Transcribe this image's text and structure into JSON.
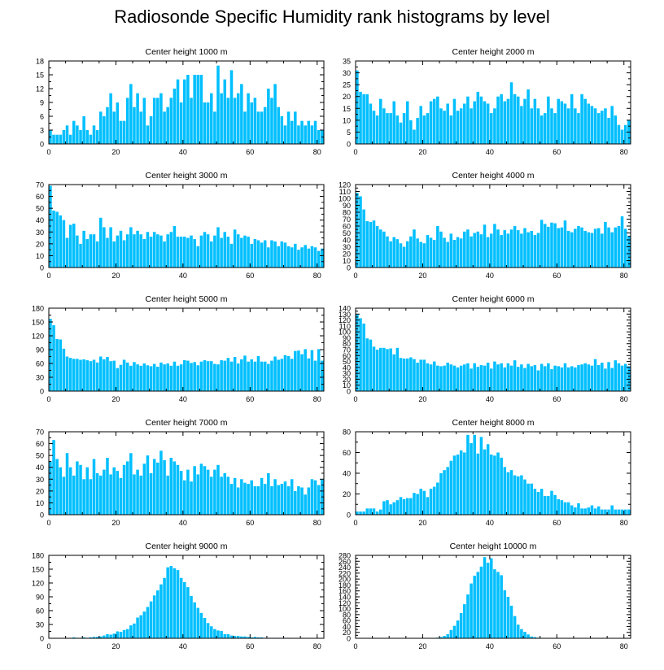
{
  "title": "Radiosonde Specific Humidity rank histograms by level",
  "colors": {
    "bar": "#00BFFF",
    "axis": "#000000",
    "background": "#FFFFFF"
  },
  "chart_data": [
    {
      "type": "bar",
      "title": "Center height 1000 m",
      "xlabel": "",
      "ylabel": "",
      "xlim": [
        0,
        82
      ],
      "ylim": [
        0,
        18
      ],
      "yticks": [
        0,
        3,
        6,
        9,
        12,
        15,
        18
      ],
      "ytick_labels": [
        "0",
        "3",
        "6",
        "9",
        "12",
        "15",
        "18"
      ],
      "xticks": [
        0,
        20,
        40,
        60,
        80
      ],
      "xtick_labels": [
        "0",
        "20",
        "40",
        "60",
        "80"
      ],
      "values": [
        3,
        2,
        2,
        2,
        3,
        4,
        2,
        5,
        4,
        3,
        6,
        3,
        2,
        4,
        3,
        7,
        6,
        8,
        11,
        7,
        9,
        5,
        5,
        10,
        13,
        8,
        11,
        7,
        10,
        4,
        6,
        10,
        10,
        11,
        7,
        8,
        10,
        12,
        14,
        9,
        14,
        15,
        10,
        15,
        15,
        15,
        9,
        9,
        11,
        7,
        17,
        11,
        14,
        10,
        16,
        10,
        11,
        13,
        7,
        11,
        9,
        10,
        7,
        7,
        8,
        12,
        10,
        13,
        8,
        6,
        4,
        7,
        5,
        7,
        4,
        5,
        4,
        5,
        4,
        5,
        3,
        3
      ]
    },
    {
      "type": "bar",
      "title": "Center height 2000 m",
      "xlabel": "",
      "ylabel": "",
      "xlim": [
        0,
        82
      ],
      "ylim": [
        0,
        35
      ],
      "yticks": [
        0,
        5,
        10,
        15,
        20,
        25,
        30,
        35
      ],
      "ytick_labels": [
        "0",
        "5",
        "10",
        "15",
        "20",
        "25",
        "30",
        "35"
      ],
      "xticks": [
        0,
        20,
        40,
        60,
        80
      ],
      "xtick_labels": [
        "0",
        "20",
        "40",
        "60",
        "80"
      ],
      "values": [
        31,
        22,
        21,
        21,
        17,
        14,
        12,
        19,
        15,
        13,
        13,
        18,
        12,
        9,
        13,
        18,
        10,
        6,
        11,
        16,
        12,
        13,
        18,
        19,
        20,
        15,
        14,
        17,
        12,
        19,
        14,
        15,
        17,
        20,
        15,
        18,
        22,
        20,
        18,
        17,
        13,
        15,
        20,
        21,
        18,
        19,
        26,
        21,
        20,
        16,
        19,
        23,
        15,
        19,
        15,
        12,
        13,
        20,
        15,
        13,
        19,
        18,
        17,
        15,
        21,
        15,
        13,
        21,
        19,
        17,
        16,
        15,
        13,
        14,
        15,
        11,
        16,
        12,
        8,
        6,
        8,
        10
      ]
    },
    {
      "type": "bar",
      "title": "Center height 3000 m",
      "xlabel": "",
      "ylabel": "",
      "xlim": [
        0,
        82
      ],
      "ylim": [
        0,
        70
      ],
      "yticks": [
        0,
        10,
        20,
        30,
        40,
        50,
        60,
        70
      ],
      "ytick_labels": [
        "0",
        "10",
        "20",
        "30",
        "40",
        "50",
        "60",
        "70"
      ],
      "xticks": [
        0,
        20,
        40,
        60,
        80
      ],
      "xtick_labels": [
        "0",
        "20",
        "40",
        "60",
        "80"
      ],
      "values": [
        69,
        48,
        47,
        44,
        40,
        25,
        36,
        37,
        27,
        20,
        31,
        24,
        28,
        28,
        22,
        42,
        34,
        25,
        34,
        22,
        27,
        31,
        23,
        28,
        34,
        28,
        31,
        28,
        24,
        30,
        26,
        30,
        28,
        27,
        22,
        28,
        30,
        35,
        26,
        26,
        26,
        25,
        27,
        24,
        18,
        27,
        30,
        28,
        22,
        27,
        34,
        25,
        30,
        26,
        20,
        32,
        28,
        25,
        27,
        26,
        20,
        24,
        23,
        21,
        23,
        17,
        23,
        22,
        18,
        22,
        21,
        18,
        17,
        20,
        15,
        17,
        19,
        16,
        18,
        17,
        14,
        16
      ]
    },
    {
      "type": "bar",
      "title": "Center height 4000 m",
      "xlabel": "",
      "ylabel": "",
      "xlim": [
        0,
        82
      ],
      "ylim": [
        0,
        120
      ],
      "yticks": [
        0,
        10,
        20,
        30,
        40,
        50,
        60,
        70,
        80,
        90,
        100,
        110,
        120
      ],
      "ytick_labels": [
        "0",
        "10",
        "20",
        "30",
        "40",
        "50",
        "60",
        "70",
        "80",
        "90",
        "100",
        "110",
        "120"
      ],
      "xticks": [
        0,
        20,
        40,
        60,
        80
      ],
      "xtick_labels": [
        "0",
        "20",
        "40",
        "60",
        "80"
      ],
      "values": [
        108,
        103,
        84,
        67,
        66,
        68,
        60,
        55,
        52,
        45,
        38,
        44,
        41,
        35,
        30,
        38,
        45,
        55,
        42,
        37,
        35,
        47,
        43,
        40,
        60,
        52,
        43,
        37,
        49,
        40,
        44,
        42,
        52,
        55,
        45,
        50,
        52,
        48,
        62,
        44,
        49,
        63,
        55,
        47,
        54,
        49,
        55,
        60,
        54,
        49,
        57,
        51,
        53,
        47,
        50,
        69,
        63,
        59,
        65,
        64,
        57,
        58,
        68,
        53,
        51,
        56,
        60,
        58,
        53,
        51,
        50,
        56,
        57,
        49,
        66,
        58,
        51,
        58,
        60,
        74,
        56,
        46
      ]
    },
    {
      "type": "bar",
      "title": "Center height 5000 m",
      "xlabel": "",
      "ylabel": "",
      "xlim": [
        0,
        82
      ],
      "ylim": [
        0,
        180
      ],
      "yticks": [
        0,
        30,
        60,
        90,
        120,
        150,
        180
      ],
      "ytick_labels": [
        "0",
        "30",
        "60",
        "90",
        "120",
        "150",
        "180"
      ],
      "xticks": [
        0,
        20,
        40,
        60,
        80
      ],
      "xtick_labels": [
        "0",
        "20",
        "40",
        "60",
        "80"
      ],
      "values": [
        157,
        143,
        113,
        112,
        92,
        75,
        72,
        70,
        70,
        68,
        69,
        67,
        65,
        68,
        62,
        75,
        69,
        74,
        65,
        66,
        50,
        57,
        68,
        62,
        55,
        63,
        58,
        55,
        60,
        56,
        54,
        59,
        53,
        62,
        58,
        60,
        55,
        64,
        55,
        58,
        67,
        66,
        61,
        63,
        56,
        64,
        67,
        65,
        65,
        59,
        58,
        67,
        66,
        72,
        64,
        74,
        60,
        69,
        77,
        64,
        69,
        64,
        76,
        64,
        64,
        59,
        66,
        75,
        68,
        70,
        78,
        76,
        70,
        87,
        88,
        80,
        91,
        71,
        89,
        66,
        91,
        66
      ]
    },
    {
      "type": "bar",
      "title": "Center height 6000 m",
      "xlabel": "",
      "ylabel": "",
      "xlim": [
        0,
        82
      ],
      "ylim": [
        0,
        140
      ],
      "yticks": [
        0,
        10,
        20,
        30,
        40,
        50,
        60,
        70,
        80,
        90,
        100,
        110,
        120,
        130,
        140
      ],
      "ytick_labels": [
        "0",
        "10",
        "20",
        "30",
        "40",
        "50",
        "60",
        "70",
        "80",
        "90",
        "100",
        "110",
        "120",
        "130",
        "140"
      ],
      "xticks": [
        0,
        20,
        40,
        60,
        80
      ],
      "xtick_labels": [
        "0",
        "20",
        "40",
        "60",
        "80"
      ],
      "values": [
        130,
        123,
        114,
        89,
        87,
        75,
        70,
        73,
        73,
        71,
        72,
        62,
        73,
        56,
        55,
        55,
        57,
        54,
        48,
        53,
        53,
        47,
        45,
        50,
        43,
        42,
        43,
        48,
        45,
        43,
        40,
        43,
        45,
        47,
        38,
        47,
        41,
        44,
        43,
        48,
        38,
        50,
        45,
        47,
        40,
        47,
        43,
        52,
        41,
        45,
        39,
        46,
        42,
        44,
        35,
        46,
        42,
        47,
        37,
        43,
        42,
        40,
        47,
        40,
        42,
        40,
        44,
        45,
        47,
        45,
        43,
        54,
        44,
        48,
        38,
        49,
        39,
        52,
        47,
        43,
        46,
        42
      ]
    },
    {
      "type": "bar",
      "title": "Center height 7000 m",
      "xlabel": "",
      "ylabel": "",
      "xlim": [
        0,
        82
      ],
      "ylim": [
        0,
        70
      ],
      "yticks": [
        0,
        10,
        20,
        30,
        40,
        50,
        60,
        70
      ],
      "ytick_labels": [
        "0",
        "10",
        "20",
        "30",
        "40",
        "50",
        "60",
        "70"
      ],
      "xticks": [
        0,
        20,
        40,
        60,
        80
      ],
      "xtick_labels": [
        "0",
        "20",
        "40",
        "60",
        "80"
      ],
      "values": [
        45,
        63,
        47,
        40,
        32,
        52,
        40,
        33,
        45,
        42,
        30,
        40,
        30,
        47,
        35,
        33,
        38,
        48,
        34,
        40,
        37,
        31,
        42,
        45,
        52,
        34,
        38,
        33,
        43,
        50,
        35,
        47,
        44,
        54,
        46,
        33,
        48,
        45,
        42,
        37,
        29,
        38,
        28,
        41,
        34,
        43,
        41,
        38,
        32,
        38,
        42,
        32,
        35,
        32,
        26,
        31,
        23,
        30,
        27,
        26,
        29,
        24,
        24,
        31,
        26,
        35,
        24,
        30,
        25,
        26,
        28,
        24,
        30,
        20,
        24,
        23,
        17,
        23,
        30,
        29,
        25,
        30
      ]
    },
    {
      "type": "bar",
      "title": "Center height 8000 m",
      "xlabel": "",
      "ylabel": "",
      "xlim": [
        0,
        82
      ],
      "ylim": [
        0,
        80
      ],
      "yticks": [
        0,
        20,
        40,
        60,
        80
      ],
      "ytick_labels": [
        "0",
        "20",
        "40",
        "60",
        "80"
      ],
      "xticks": [
        0,
        20,
        40,
        60,
        80
      ],
      "xtick_labels": [
        "0",
        "20",
        "40",
        "60",
        "80"
      ],
      "values": [
        3,
        3,
        3,
        6,
        6,
        6,
        3,
        5,
        13,
        14,
        10,
        12,
        14,
        17,
        15,
        16,
        16,
        21,
        20,
        25,
        23,
        17,
        25,
        27,
        31,
        40,
        43,
        46,
        52,
        57,
        58,
        62,
        60,
        77,
        69,
        77,
        59,
        75,
        63,
        68,
        58,
        57,
        60,
        55,
        46,
        41,
        43,
        38,
        37,
        38,
        34,
        30,
        30,
        25,
        22,
        25,
        18,
        18,
        23,
        19,
        15,
        14,
        12,
        12,
        9,
        7,
        11,
        6,
        6,
        7,
        9,
        6,
        8,
        5,
        5,
        5,
        9,
        5,
        5,
        5,
        5,
        5
      ]
    },
    {
      "type": "bar",
      "title": "Center height 9000 m",
      "xlabel": "",
      "ylabel": "",
      "xlim": [
        0,
        82
      ],
      "ylim": [
        0,
        180
      ],
      "yticks": [
        0,
        30,
        60,
        90,
        120,
        150,
        180
      ],
      "ytick_labels": [
        "0",
        "30",
        "60",
        "90",
        "120",
        "150",
        "180"
      ],
      "xticks": [
        0,
        20,
        40,
        60,
        80
      ],
      "xtick_labels": [
        "0",
        "20",
        "40",
        "60",
        "80"
      ],
      "values": [
        0,
        0,
        0,
        0,
        0,
        0,
        1,
        2,
        1,
        1,
        2,
        1,
        2,
        3,
        3,
        4,
        6,
        9,
        8,
        10,
        15,
        14,
        18,
        20,
        28,
        32,
        45,
        50,
        58,
        68,
        80,
        93,
        104,
        117,
        131,
        154,
        157,
        152,
        148,
        131,
        122,
        111,
        92,
        78,
        66,
        55,
        44,
        33,
        26,
        20,
        17,
        16,
        9,
        9,
        6,
        5,
        5,
        4,
        4,
        3,
        2,
        3,
        2,
        2,
        1,
        1,
        1,
        1,
        1,
        1,
        1,
        1,
        0,
        0,
        0,
        0,
        0,
        0,
        0,
        0,
        0,
        0
      ]
    },
    {
      "type": "bar",
      "title": "Center height 10000 m",
      "xlabel": "",
      "ylabel": "",
      "xlim": [
        0,
        82
      ],
      "ylim": [
        0,
        280
      ],
      "yticks": [
        0,
        20,
        40,
        60,
        80,
        100,
        120,
        140,
        160,
        180,
        200,
        220,
        240,
        260,
        280
      ],
      "ytick_labels": [
        "0",
        "20",
        "40",
        "60",
        "80",
        "100",
        "120",
        "140",
        "160",
        "180",
        "200",
        "220",
        "240",
        "260",
        "280"
      ],
      "xticks": [
        0,
        20,
        40,
        60,
        80
      ],
      "xtick_labels": [
        "0",
        "20",
        "40",
        "60",
        "80"
      ],
      "values": [
        0,
        0,
        0,
        0,
        0,
        0,
        0,
        0,
        0,
        0,
        0,
        0,
        0,
        0,
        0,
        0,
        0,
        0,
        0,
        0,
        0,
        0,
        0,
        1,
        2,
        4,
        8,
        14,
        28,
        42,
        60,
        85,
        115,
        148,
        185,
        211,
        224,
        242,
        274,
        255,
        270,
        233,
        224,
        213,
        162,
        140,
        110,
        75,
        46,
        31,
        22,
        13,
        6,
        4,
        2,
        1,
        1,
        0,
        0,
        0,
        0,
        0,
        0,
        0,
        0,
        0,
        0,
        0,
        0,
        0,
        0,
        0,
        0,
        0,
        0,
        0,
        0,
        0,
        0,
        0,
        0,
        0
      ]
    }
  ]
}
